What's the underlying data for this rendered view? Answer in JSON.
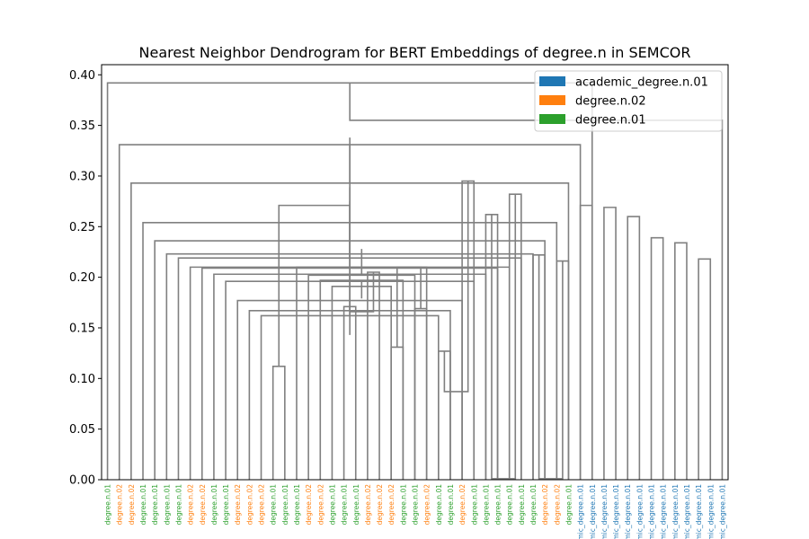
{
  "chart_data": {
    "type": "dendrogram",
    "title": "Nearest Neighbor Dendrogram for BERT Embeddings of degree.n in SEMCOR",
    "xlabel": "",
    "ylabel": "",
    "ylim": [
      0,
      0.41
    ],
    "yticks": [
      0.0,
      0.05,
      0.1,
      0.15,
      0.2,
      0.25,
      0.3,
      0.35,
      0.4
    ],
    "ytick_labels": [
      "0.00",
      "0.05",
      "0.10",
      "0.15",
      "0.20",
      "0.25",
      "0.30",
      "0.35",
      "0.40"
    ],
    "grid": false,
    "legend_position": "top-right",
    "link_color": "#808080",
    "legend": [
      {
        "label": "academic_degree.n.01",
        "color": "#1f77b4"
      },
      {
        "label": "degree.n.02",
        "color": "#ff7f0e"
      },
      {
        "label": "degree.n.01",
        "color": "#2ca02c"
      }
    ],
    "label_colors": {
      "degree.n.01": "#2ca02c",
      "degree.n.02": "#ff7f0e",
      "academic_degree.n.01": "#1f77b4"
    },
    "leaves": [
      "degree.n.01",
      "degree.n.02",
      "degree.n.02",
      "degree.n.01",
      "degree.n.01",
      "degree.n.01",
      "degree.n.01",
      "degree.n.02",
      "degree.n.02",
      "degree.n.01",
      "degree.n.01",
      "degree.n.02",
      "degree.n.02",
      "degree.n.02",
      "degree.n.01",
      "degree.n.01",
      "degree.n.01",
      "degree.n.02",
      "degree.n.02",
      "degree.n.01",
      "degree.n.01",
      "degree.n.01",
      "degree.n.02",
      "degree.n.02",
      "degree.n.02",
      "degree.n.01",
      "degree.n.01",
      "degree.n.02",
      "degree.n.01",
      "degree.n.01",
      "degree.n.02",
      "degree.n.01",
      "degree.n.01",
      "degree.n.01",
      "degree.n.01",
      "degree.n.01",
      "degree.n.01",
      "degree.n.02",
      "degree.n.02",
      "degree.n.01",
      "academic_degree.n.01",
      "academic_degree.n.01",
      "academic_degree.n.01",
      "academic_degree.n.01",
      "academic_degree.n.01",
      "academic_degree.n.01",
      "academic_degree.n.01",
      "academic_degree.n.01",
      "academic_degree.n.01",
      "academic_degree.n.01",
      "academic_degree.n.01",
      "academic_degree.n.01",
      "academic_degree.n.01"
    ],
    "merges": [
      [
        0,
        41,
        0.392
      ],
      [
        1,
        40,
        0.331
      ],
      [
        2,
        39,
        0.293
      ],
      [
        3,
        38,
        0.254
      ],
      [
        4,
        37,
        0.236
      ],
      [
        5,
        36,
        0.223
      ],
      [
        6,
        35,
        0.219
      ],
      [
        7,
        34,
        0.21
      ],
      [
        8,
        33,
        0.209
      ],
      [
        9,
        32,
        0.203
      ],
      [
        10,
        31,
        0.196
      ],
      [
        11,
        30,
        0.177
      ],
      [
        12,
        29,
        0.167
      ],
      [
        13,
        28,
        0.162
      ],
      [
        14,
        15,
        0.112
      ],
      [
        16,
        27,
        0.21
      ],
      [
        17,
        26,
        0.202
      ],
      [
        18,
        25,
        0.197
      ],
      [
        19,
        24,
        0.191
      ],
      [
        20,
        21,
        0.171
      ],
      [
        22,
        23,
        0.205
      ],
      [
        24,
        25,
        0.131
      ],
      [
        26,
        27,
        0.169
      ],
      [
        28,
        29,
        0.127
      ],
      [
        30,
        31,
        0.295
      ],
      [
        32,
        33,
        0.262
      ],
      [
        34,
        35,
        0.282
      ],
      [
        36,
        37,
        0.222
      ],
      [
        38,
        39,
        0.216
      ],
      [
        40,
        41,
        0.271
      ],
      [
        42,
        43,
        0.269
      ],
      [
        44,
        45,
        0.26
      ],
      [
        46,
        47,
        0.239
      ],
      [
        48,
        49,
        0.234
      ],
      [
        50,
        51,
        0.218
      ],
      [
        52,
        53,
        0.355
      ],
      [
        54,
        55,
        0.311
      ],
      [
        56,
        57,
        0.219
      ],
      [
        58,
        59,
        0.338
      ],
      [
        60,
        61,
        0.289
      ],
      [
        62,
        63,
        0.143
      ],
      [
        64,
        65,
        0.275
      ],
      [
        66,
        67,
        0.271
      ],
      [
        68,
        69,
        0.228
      ],
      [
        70,
        71,
        0.179
      ],
      [
        72,
        73,
        0.166
      ],
      [
        74,
        75,
        0.21
      ],
      [
        76,
        77,
        0.087
      ],
      [
        78,
        79,
        0.001
      ],
      [
        80,
        81,
        0.001
      ]
    ]
  }
}
